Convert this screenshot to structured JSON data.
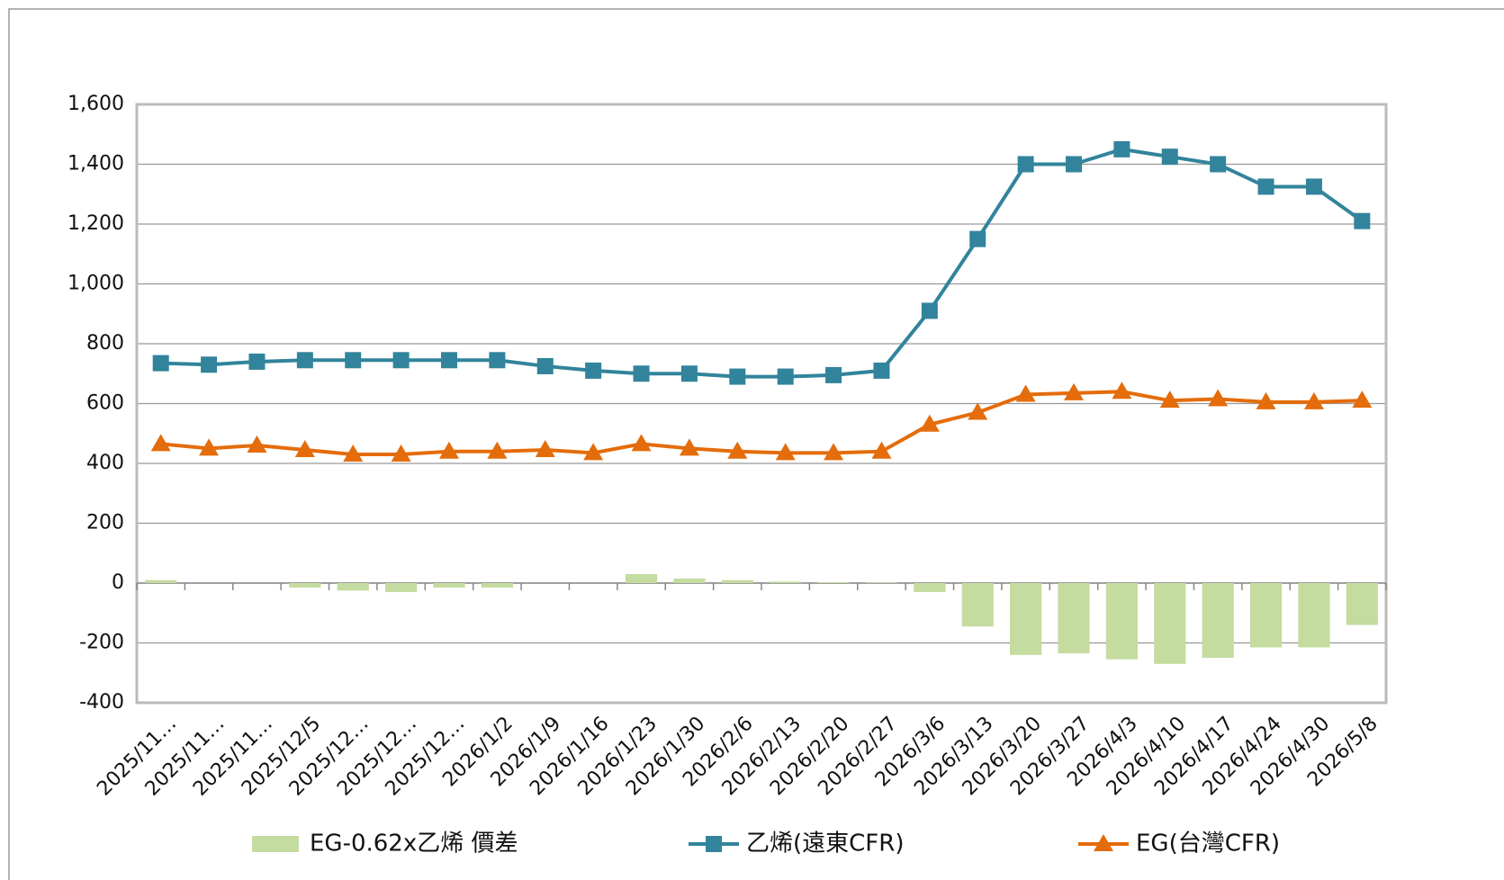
{
  "chart_data": {
    "type": "bar-line",
    "categories": [
      "2025/11…",
      "2025/11…",
      "2025/11…",
      "2025/12/5",
      "2025/12…",
      "2025/12…",
      "2025/12…",
      "2026/1/2",
      "2026/1/9",
      "2026/1/16",
      "2026/1/23",
      "2026/1/30",
      "2026/2/6",
      "2026/2/13",
      "2026/2/20",
      "2026/2/27",
      "2026/3/6",
      "2026/3/13",
      "2026/3/20",
      "2026/3/27",
      "2026/4/3",
      "2026/4/10",
      "2026/4/17",
      "2026/4/24",
      "2026/4/30",
      "2026/5/8"
    ],
    "series": [
      {
        "name": "EG-0.62x乙烯 價差",
        "type": "bar",
        "color": "#c4dca0",
        "values": [
          10,
          0,
          0,
          -15,
          -25,
          -30,
          -15,
          -15,
          0,
          0,
          30,
          15,
          10,
          5,
          3,
          2,
          -30,
          -145,
          -240,
          -235,
          -255,
          -270,
          -250,
          -215,
          -215,
          -140
        ]
      },
      {
        "name": "乙烯(遠東CFR)",
        "type": "line",
        "marker": "square",
        "color": "#31849b",
        "values": [
          735,
          730,
          740,
          745,
          745,
          745,
          745,
          745,
          725,
          710,
          700,
          700,
          690,
          690,
          695,
          710,
          910,
          1150,
          1400,
          1400,
          1450,
          1425,
          1400,
          1325,
          1325,
          1210
        ]
      },
      {
        "name": "EG(台灣CFR)",
        "type": "line",
        "marker": "triangle",
        "color": "#e46c0a",
        "values": [
          465,
          450,
          460,
          445,
          430,
          430,
          440,
          440,
          445,
          435,
          465,
          450,
          440,
          435,
          435,
          440,
          530,
          570,
          630,
          635,
          640,
          610,
          615,
          605,
          605,
          610
        ]
      }
    ],
    "ylim": [
      -400,
      1600
    ],
    "yticks": [
      {
        "value": -400,
        "label": "-400"
      },
      {
        "value": -200,
        "label": "-200"
      },
      0,
      200,
      400,
      600,
      800,
      {
        "value": 1000,
        "label": "1,000"
      },
      {
        "value": 1200,
        "label": "1,200"
      },
      {
        "value": 1400,
        "label": "1,400"
      },
      {
        "value": 1600,
        "label": "1,600"
      }
    ],
    "grid": true,
    "legend": "bottom"
  }
}
